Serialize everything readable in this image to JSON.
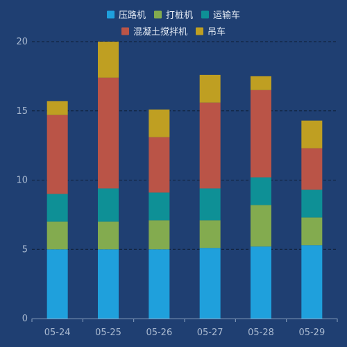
{
  "chart_data": {
    "type": "bar",
    "stacked": true,
    "categories": [
      "05-24",
      "05-25",
      "05-26",
      "05-27",
      "05-28",
      "05-29"
    ],
    "series": [
      {
        "name": "压路机",
        "color": "#1fa0dc",
        "values": [
          5.0,
          5.0,
          5.0,
          5.1,
          5.2,
          5.3
        ]
      },
      {
        "name": "打桩机",
        "color": "#83ab4f",
        "values": [
          2.0,
          2.0,
          2.1,
          2.0,
          3.0,
          2.0
        ]
      },
      {
        "name": "运输车",
        "color": "#0e9096",
        "values": [
          2.0,
          2.4,
          2.0,
          2.3,
          2.0,
          2.0
        ]
      },
      {
        "name": "混凝土搅拌机",
        "color": "#ba5447",
        "values": [
          5.7,
          8.0,
          4.0,
          6.2,
          6.3,
          3.0
        ]
      },
      {
        "name": "吊车",
        "color": "#bf9f22",
        "values": [
          1.0,
          2.6,
          2.0,
          2.0,
          1.0,
          2.0
        ]
      }
    ],
    "y_ticks": [
      "0",
      "5",
      "10",
      "15",
      "20"
    ],
    "ylim": [
      0,
      20
    ],
    "grid": true,
    "legend_position": "top-center",
    "title": "",
    "xlabel": "",
    "ylabel": ""
  }
}
